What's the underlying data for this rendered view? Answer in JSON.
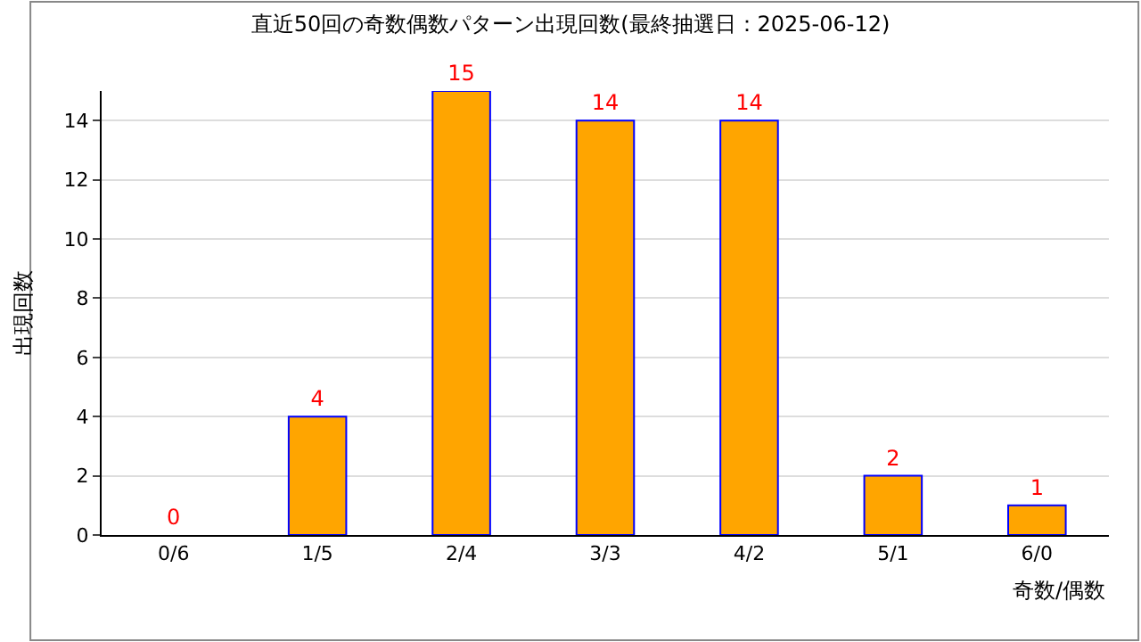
{
  "chart_data": {
    "type": "bar",
    "title": "直近50回の奇数偶数パターン出現回数(最終抽選日：2025-06-12)",
    "xlabel": "奇数/偶数",
    "ylabel": "出現回数",
    "categories": [
      "0/6",
      "1/5",
      "2/4",
      "3/3",
      "4/2",
      "5/1",
      "6/0"
    ],
    "values": [
      0,
      4,
      15,
      14,
      14,
      2,
      1
    ],
    "color": "#ffa500",
    "ylim": [
      0,
      15
    ],
    "yticks": [
      0,
      2,
      4,
      6,
      8,
      10,
      12,
      14
    ],
    "grid": "y",
    "data_labels": true,
    "legend": false
  }
}
